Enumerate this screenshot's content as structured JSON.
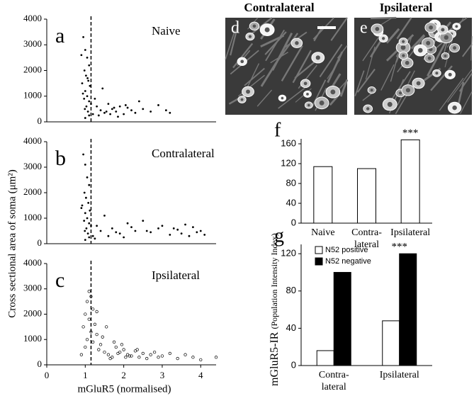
{
  "chart_data": [
    {
      "type": "scatter",
      "panel": "a",
      "title": "Naive",
      "marker": "filled",
      "color": "#000000",
      "vline": 1.15,
      "xlim": [
        0,
        4.4
      ],
      "ylim": [
        0,
        4000
      ],
      "yticks": [
        0,
        1000,
        2000,
        3000,
        4000
      ],
      "x": [
        0.95,
        1.0,
        1.05,
        1.1,
        0.98,
        1.02,
        1.08,
        0.92,
        1.12,
        1.0,
        1.05,
        0.97,
        1.1,
        1.15,
        1.03,
        0.99,
        1.07,
        1.2,
        1.3,
        1.4,
        1.5,
        1.6,
        1.7,
        1.8,
        1.9,
        2.0,
        2.1,
        2.2,
        2.3,
        2.5,
        2.7,
        2.9,
        3.1,
        3.2,
        1.25,
        1.35,
        1.45,
        1.55,
        1.65,
        1.75,
        1.85,
        2.05,
        2.4,
        1.0,
        1.1,
        0.94,
        1.06,
        0.9
      ],
      "values": [
        3300,
        2800,
        2500,
        2200,
        2000,
        1800,
        1600,
        1500,
        1400,
        1200,
        1000,
        900,
        800,
        700,
        600,
        500,
        400,
        300,
        600,
        450,
        350,
        700,
        500,
        400,
        600,
        300,
        550,
        450,
        350,
        500,
        400,
        650,
        450,
        350,
        900,
        250,
        1300,
        400,
        300,
        550,
        200,
        650,
        800,
        150,
        250,
        1100,
        1700,
        2600
      ]
    },
    {
      "type": "scatter",
      "panel": "b",
      "title": "Contralateral",
      "marker": "filled",
      "color": "#000000",
      "vline": 1.15,
      "ylabel": "Cross sectional area of soma (μm²)",
      "xlim": [
        0,
        4.4
      ],
      "ylim": [
        0,
        4000
      ],
      "yticks": [
        0,
        1000,
        2000,
        3000,
        4000
      ],
      "x": [
        0.95,
        1.0,
        1.05,
        1.1,
        0.98,
        1.02,
        1.08,
        0.92,
        1.12,
        1.0,
        1.05,
        0.97,
        1.1,
        1.15,
        1.03,
        0.99,
        1.07,
        1.2,
        1.3,
        1.4,
        1.5,
        1.7,
        1.9,
        2.1,
        2.3,
        2.5,
        2.7,
        2.9,
        3.0,
        3.2,
        3.4,
        3.5,
        3.6,
        3.7,
        3.8,
        3.9,
        4.0,
        4.1,
        1.6,
        1.8,
        2.0,
        2.2,
        2.6,
        3.3,
        1.25,
        0.9,
        1.0,
        1.1
      ],
      "values": [
        3500,
        3100,
        2600,
        2300,
        2000,
        1800,
        1600,
        1500,
        1300,
        1200,
        1000,
        900,
        800,
        700,
        600,
        500,
        400,
        300,
        700,
        500,
        1100,
        600,
        400,
        800,
        500,
        900,
        450,
        600,
        700,
        350,
        550,
        400,
        750,
        300,
        650,
        450,
        500,
        350,
        300,
        450,
        250,
        650,
        500,
        600,
        200,
        1400,
        150,
        250
      ]
    },
    {
      "type": "scatter",
      "panel": "c",
      "title": "Ipsilateral",
      "marker": "open",
      "color": "#000000",
      "vline": 1.15,
      "xlabel": "mGluR5 (normalised)",
      "xlim": [
        0,
        4.4
      ],
      "xticks": [
        0,
        1,
        2,
        3,
        4
      ],
      "ylim": [
        0,
        4000
      ],
      "yticks": [
        0,
        1000,
        2000,
        3000,
        4000
      ],
      "x": [
        1.1,
        1.15,
        1.05,
        1.2,
        1.0,
        1.1,
        1.25,
        0.95,
        1.15,
        1.3,
        1.05,
        1.2,
        1.4,
        1.0,
        1.35,
        1.5,
        1.6,
        1.45,
        1.7,
        1.8,
        1.9,
        2.0,
        2.1,
        2.2,
        2.3,
        2.4,
        2.5,
        2.6,
        2.7,
        2.8,
        2.9,
        3.0,
        3.2,
        3.4,
        3.6,
        3.8,
        4.0,
        4.4,
        1.55,
        1.75,
        1.95,
        2.15,
        2.35,
        1.65,
        1.85,
        2.05,
        0.9,
        1.3
      ],
      "values": [
        2900,
        2700,
        2500,
        2200,
        2000,
        1800,
        1600,
        1500,
        1300,
        1200,
        1000,
        900,
        800,
        700,
        600,
        500,
        400,
        1100,
        300,
        700,
        500,
        600,
        400,
        350,
        550,
        300,
        450,
        250,
        400,
        500,
        300,
        350,
        450,
        250,
        400,
        300,
        200,
        300,
        1500,
        900,
        800,
        350,
        600,
        250,
        450,
        300,
        400,
        2100
      ]
    },
    {
      "type": "image",
      "panel": "d",
      "title": "Contralateral"
    },
    {
      "type": "image",
      "panel": "e",
      "title": "Ipsilateral"
    },
    {
      "type": "bar",
      "panel": "f",
      "categories": [
        "Naive",
        "Contra-lateral",
        "Ipsilateral"
      ],
      "values": [
        114,
        110,
        168
      ],
      "color": "#ffffff",
      "ylim": [
        0,
        170
      ],
      "yticks": [
        0,
        40,
        80,
        120,
        160
      ],
      "annotations": [
        {
          "text": "***",
          "category": "Ipsilateral"
        }
      ]
    },
    {
      "type": "bar",
      "panel": "g",
      "categories": [
        "Contra-lateral",
        "Ipsilateral"
      ],
      "ylabel": "mGluR5-IR",
      "ylabel_note": "(Population Intensity Index)",
      "series": [
        {
          "name": "N52 positive",
          "color": "#ffffff",
          "values": [
            16,
            48
          ]
        },
        {
          "name": "N52 negative",
          "color": "#000000",
          "values": [
            100,
            120
          ]
        }
      ],
      "ylim": [
        0,
        130
      ],
      "yticks": [
        0,
        40,
        80,
        120
      ],
      "annotations": [
        {
          "text": "***",
          "category": "Ipsilateral"
        }
      ]
    }
  ]
}
